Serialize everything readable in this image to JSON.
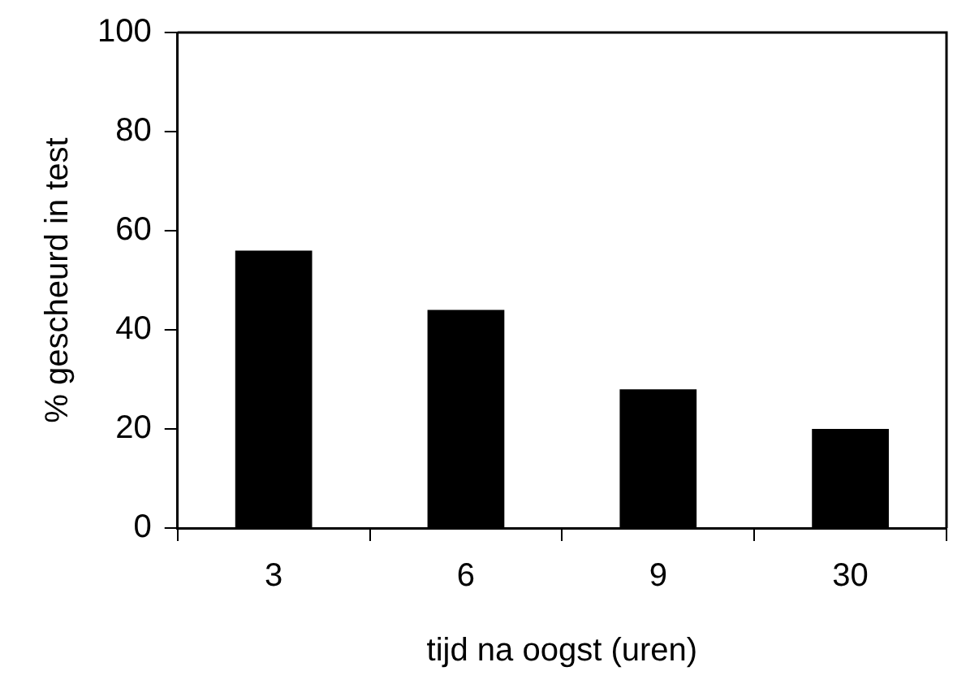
{
  "chart_data": {
    "type": "bar",
    "xlabel": "tijd na oogst (uren)",
    "ylabel": "% gescheurd in test",
    "categories": [
      "3",
      "6",
      "9",
      "30"
    ],
    "values": [
      56,
      44,
      28,
      20
    ],
    "color": "#000000",
    "ylim": [
      0,
      100
    ],
    "yticks": [
      0,
      20,
      40,
      60,
      80,
      100
    ],
    "grid": false,
    "legend": false
  }
}
